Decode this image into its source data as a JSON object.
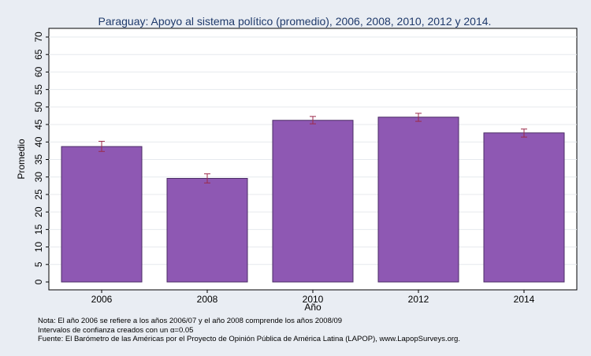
{
  "chart_data": {
    "type": "bar",
    "title": "Paraguay: Apoyo al sistema político (promedio), 2006, 2008, 2010, 2012 y 2014.",
    "xlabel": "Año",
    "ylabel": "Promedio",
    "categories": [
      "2006",
      "2008",
      "2010",
      "2012",
      "2014"
    ],
    "values": [
      38.7,
      29.6,
      46.2,
      47.1,
      42.6
    ],
    "error_low": [
      37.3,
      28.3,
      45.2,
      45.9,
      41.4
    ],
    "error_high": [
      40.2,
      30.9,
      47.3,
      48.2,
      43.7
    ],
    "ylim": [
      0,
      70
    ],
    "yticks": [
      0,
      5,
      10,
      15,
      20,
      25,
      30,
      35,
      40,
      45,
      50,
      55,
      60,
      65,
      70
    ],
    "grid": true,
    "bar_color": "#8e58b3",
    "error_color": "#9c2a4a",
    "notes": [
      "Nota: El año 2006 se refiere a los años 2006/07 y el año 2008 comprende los años 2008/09",
      "Intervalos de confianza creados con un α=0.05",
      "Fuente: El Barómetro de las Américas por el Proyecto de Opinión Pública de América Latina (LAPOP), www.LapopSurveys.org."
    ]
  }
}
